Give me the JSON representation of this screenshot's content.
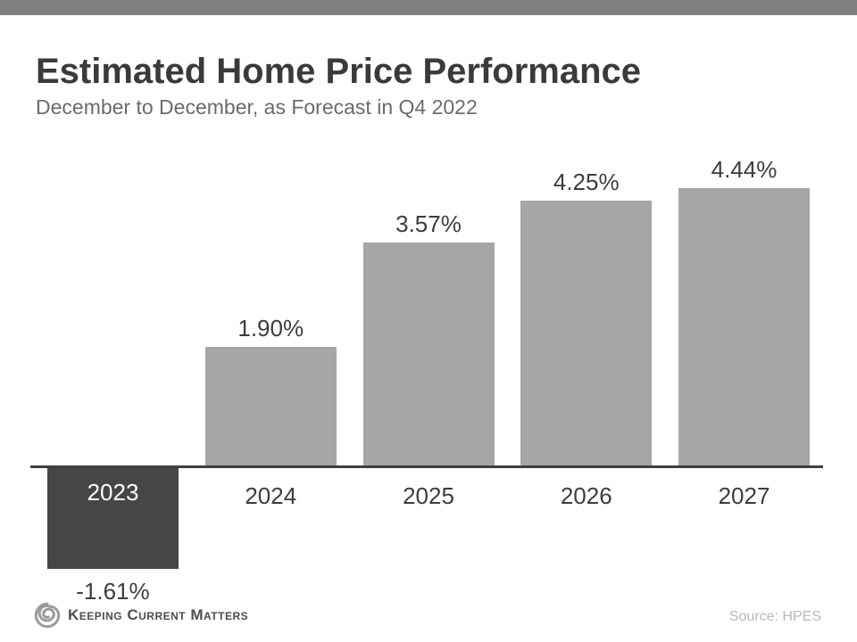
{
  "header": {
    "title": "Estimated Home Price Performance",
    "subtitle": "December to December, as Forecast in Q4 2022"
  },
  "footer": {
    "logo_text": "Keeping Current Matters",
    "source": "Source: HPES"
  },
  "colors": {
    "top_strip": "#808080",
    "bar_positive": "#a6a6a6",
    "bar_negative": "#464646",
    "axis": "#3f3f3f",
    "title": "#3a3a3a",
    "subtitle": "#6b6b6b",
    "label": "#3d3d3d",
    "negative_category_label": "#ffffff",
    "source": "#b9b9b9",
    "logo": "#9b9b9b"
  },
  "chart_data": {
    "type": "bar",
    "title": "Estimated Home Price Performance",
    "subtitle": "December to December, as Forecast in Q4 2022",
    "categories": [
      "2023",
      "2024",
      "2025",
      "2026",
      "2027"
    ],
    "values": [
      -1.61,
      1.9,
      3.57,
      4.25,
      4.44
    ],
    "value_labels": [
      "-1.61%",
      "1.90%",
      "3.57%",
      "4.25%",
      "4.44%"
    ],
    "xlabel": "",
    "ylabel": "",
    "ylim": [
      -2,
      5
    ],
    "grid": false,
    "legend": false,
    "axis_labels_shown": false,
    "bar_colors": [
      "#464646",
      "#a6a6a6",
      "#a6a6a6",
      "#a6a6a6",
      "#a6a6a6"
    ]
  }
}
